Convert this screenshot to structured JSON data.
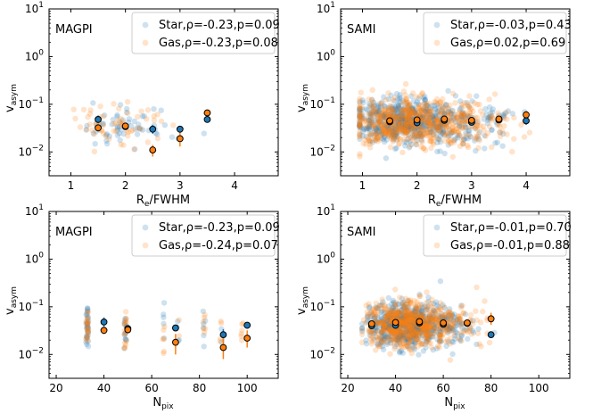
{
  "colors": {
    "star": "#1f77b4",
    "gas": "#ff7f0e",
    "axis": "#000000",
    "legend_border": "#cccccc"
  },
  "chart_data": [
    {
      "type": "scatter",
      "panel_title": "MAGPI",
      "xlabel_main": "R",
      "xlabel_sub": "e",
      "xlabel_tail": "/FWHM",
      "ylabel_main": "v",
      "ylabel_sub": "asym",
      "xlim": [
        0.6,
        4.8
      ],
      "ylim_log10": [
        -2.5,
        1.0
      ],
      "xticks": [
        1,
        2,
        3,
        4
      ],
      "xtick_labels": [
        "1",
        "2",
        "3",
        "4"
      ],
      "yticks_exp": [
        -2,
        -1,
        0,
        1
      ],
      "legend": [
        {
          "series": "star",
          "label": "Star,ρ=-0.23,p=0.09"
        },
        {
          "series": "gas",
          "label": "Gas,ρ=-0.23,p=0.08"
        }
      ],
      "binned": {
        "star": [
          {
            "x": 1.5,
            "y": 0.048,
            "lo": 0.04,
            "hi": 0.058
          },
          {
            "x": 2.0,
            "y": 0.034,
            "lo": 0.03,
            "hi": 0.038
          },
          {
            "x": 2.5,
            "y": 0.03,
            "lo": 0.024,
            "hi": 0.037
          },
          {
            "x": 3.0,
            "y": 0.03,
            "lo": 0.026,
            "hi": 0.034
          },
          {
            "x": 3.5,
            "y": 0.048,
            "lo": 0.045,
            "hi": 0.052
          }
        ],
        "gas": [
          {
            "x": 1.5,
            "y": 0.032,
            "lo": 0.027,
            "hi": 0.038
          },
          {
            "x": 2.0,
            "y": 0.035,
            "lo": 0.031,
            "hi": 0.039
          },
          {
            "x": 2.5,
            "y": 0.011,
            "lo": 0.008,
            "hi": 0.014
          },
          {
            "x": 3.0,
            "y": 0.019,
            "lo": 0.013,
            "hi": 0.026
          },
          {
            "x": 3.5,
            "y": 0.066,
            "lo": 0.06,
            "hi": 0.072
          }
        ]
      },
      "scatter_gen": {
        "n_star": 60,
        "n_gas": 60,
        "x_mode": "continuous",
        "x_min": 0.9,
        "x_max": 3.6,
        "x_peak": 1.7,
        "mu": -1.45,
        "sigma": 0.22,
        "seed": 11
      }
    },
    {
      "type": "scatter",
      "panel_title": "SAMI",
      "xlabel_main": "R",
      "xlabel_sub": "e",
      "xlabel_tail": "/FWHM",
      "ylabel_main": "v",
      "ylabel_sub": "asym",
      "xlim": [
        0.6,
        4.8
      ],
      "ylim_log10": [
        -2.5,
        1.0
      ],
      "xticks": [
        1,
        2,
        3,
        4
      ],
      "xtick_labels": [
        "1",
        "2",
        "3",
        "4"
      ],
      "yticks_exp": [
        -2,
        -1,
        0,
        1
      ],
      "legend": [
        {
          "series": "star",
          "label": "Star,ρ=-0.03,p=0.43"
        },
        {
          "series": "gas",
          "label": "Gas,ρ=0.02,p=0.69"
        }
      ],
      "binned": {
        "star": [
          {
            "x": 1.5,
            "y": 0.043,
            "lo": 0.04,
            "hi": 0.046
          },
          {
            "x": 2.0,
            "y": 0.041,
            "lo": 0.038,
            "hi": 0.044
          },
          {
            "x": 2.5,
            "y": 0.046,
            "lo": 0.042,
            "hi": 0.05
          },
          {
            "x": 3.0,
            "y": 0.042,
            "lo": 0.038,
            "hi": 0.046
          },
          {
            "x": 3.5,
            "y": 0.047,
            "lo": 0.041,
            "hi": 0.054
          },
          {
            "x": 4.0,
            "y": 0.045,
            "lo": 0.037,
            "hi": 0.054
          }
        ],
        "gas": [
          {
            "x": 1.5,
            "y": 0.045,
            "lo": 0.041,
            "hi": 0.049
          },
          {
            "x": 2.0,
            "y": 0.047,
            "lo": 0.043,
            "hi": 0.051
          },
          {
            "x": 2.5,
            "y": 0.049,
            "lo": 0.045,
            "hi": 0.054
          },
          {
            "x": 3.0,
            "y": 0.046,
            "lo": 0.041,
            "hi": 0.051
          },
          {
            "x": 3.5,
            "y": 0.049,
            "lo": 0.043,
            "hi": 0.056
          },
          {
            "x": 4.0,
            "y": 0.06,
            "lo": 0.049,
            "hi": 0.072
          }
        ]
      },
      "scatter_gen": {
        "n_star": 650,
        "n_gas": 650,
        "x_mode": "continuous",
        "x_min": 0.95,
        "x_max": 4.4,
        "x_peak": 1.5,
        "mu": -1.38,
        "sigma": 0.24,
        "seed": 23
      }
    },
    {
      "type": "scatter",
      "panel_title": "MAGPI",
      "xlabel_main": "N",
      "xlabel_sub": "pix",
      "xlabel_tail": "",
      "ylabel_main": "v",
      "ylabel_sub": "asym",
      "xlim": [
        17,
        113
      ],
      "ylim_log10": [
        -2.5,
        1.0
      ],
      "xticks": [
        20,
        40,
        60,
        80,
        100
      ],
      "xtick_labels": [
        "20",
        "40",
        "60",
        "80",
        "100"
      ],
      "yticks_exp": [
        -2,
        -1,
        0,
        1
      ],
      "legend": [
        {
          "series": "star",
          "label": "Star,ρ=-0.23,p=0.09"
        },
        {
          "series": "gas",
          "label": "Gas,ρ=-0.24,p=0.07"
        }
      ],
      "binned": {
        "star": [
          {
            "x": 40,
            "y": 0.048,
            "lo": 0.038,
            "hi": 0.06
          },
          {
            "x": 50,
            "y": 0.035,
            "lo": 0.031,
            "hi": 0.04
          },
          {
            "x": 70,
            "y": 0.036,
            "lo": 0.032,
            "hi": 0.04
          },
          {
            "x": 90,
            "y": 0.026,
            "lo": 0.018,
            "hi": 0.034
          },
          {
            "x": 100,
            "y": 0.041,
            "lo": 0.036,
            "hi": 0.047
          }
        ],
        "gas": [
          {
            "x": 40,
            "y": 0.032,
            "lo": 0.027,
            "hi": 0.038
          },
          {
            "x": 50,
            "y": 0.033,
            "lo": 0.028,
            "hi": 0.039
          },
          {
            "x": 70,
            "y": 0.018,
            "lo": 0.01,
            "hi": 0.027
          },
          {
            "x": 90,
            "y": 0.014,
            "lo": 0.008,
            "hi": 0.022
          },
          {
            "x": 100,
            "y": 0.022,
            "lo": 0.014,
            "hi": 0.032
          }
        ]
      },
      "scatter_gen": {
        "n_star": 60,
        "n_gas": 60,
        "x_mode": "discrete",
        "x_values": [
          33,
          33,
          33,
          33,
          33,
          33,
          49,
          49,
          49,
          49,
          65,
          71,
          82,
          89,
          98
        ],
        "x_jitter": 0.5,
        "mu": -1.45,
        "sigma": 0.22,
        "seed": 37
      }
    },
    {
      "type": "scatter",
      "panel_title": "SAMI",
      "xlabel_main": "N",
      "xlabel_sub": "pix",
      "xlabel_tail": "",
      "ylabel_main": "v",
      "ylabel_sub": "asym",
      "xlim": [
        17,
        113
      ],
      "ylim_log10": [
        -2.5,
        1.0
      ],
      "xticks": [
        20,
        40,
        60,
        80,
        100
      ],
      "xtick_labels": [
        "20",
        "40",
        "60",
        "80",
        "100"
      ],
      "yticks_exp": [
        -2,
        -1,
        0,
        1
      ],
      "legend": [
        {
          "series": "star",
          "label": "Star,ρ=-0.01,p=0.70"
        },
        {
          "series": "gas",
          "label": "Gas,ρ=-0.01,p=0.88"
        }
      ],
      "binned": {
        "star": [
          {
            "x": 30,
            "y": 0.04,
            "lo": 0.037,
            "hi": 0.043
          },
          {
            "x": 40,
            "y": 0.041,
            "lo": 0.038,
            "hi": 0.044
          },
          {
            "x": 50,
            "y": 0.046,
            "lo": 0.042,
            "hi": 0.05
          },
          {
            "x": 60,
            "y": 0.043,
            "lo": 0.039,
            "hi": 0.047
          },
          {
            "x": 70,
            "y": 0.045,
            "lo": 0.04,
            "hi": 0.05
          },
          {
            "x": 80,
            "y": 0.026,
            "lo": 0.024,
            "hi": 0.028
          }
        ],
        "gas": [
          {
            "x": 30,
            "y": 0.044,
            "lo": 0.04,
            "hi": 0.048
          },
          {
            "x": 40,
            "y": 0.047,
            "lo": 0.043,
            "hi": 0.051
          },
          {
            "x": 50,
            "y": 0.049,
            "lo": 0.045,
            "hi": 0.054
          },
          {
            "x": 60,
            "y": 0.046,
            "lo": 0.041,
            "hi": 0.051
          },
          {
            "x": 70,
            "y": 0.046,
            "lo": 0.041,
            "hi": 0.051
          },
          {
            "x": 80,
            "y": 0.056,
            "lo": 0.042,
            "hi": 0.075
          }
        ]
      },
      "scatter_gen": {
        "n_star": 650,
        "n_gas": 650,
        "x_mode": "continuous",
        "x_min": 26,
        "x_max": 84,
        "x_peak": 42,
        "mu": -1.38,
        "sigma": 0.24,
        "seed": 51
      }
    }
  ]
}
